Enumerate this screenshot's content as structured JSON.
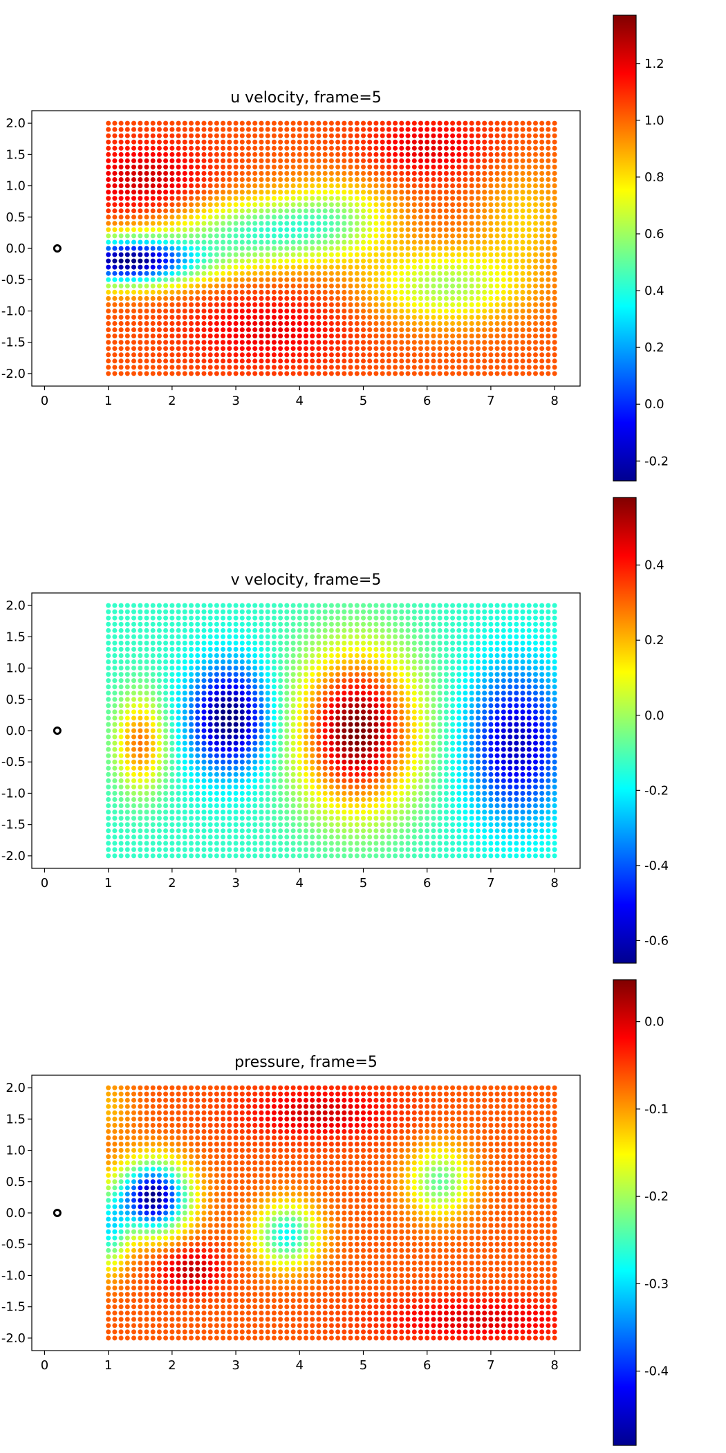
{
  "chart_data": [
    {
      "type": "scatter",
      "title": "u velocity, frame=5",
      "field": "u",
      "xlim": [
        -0.2,
        8.4
      ],
      "ylim": [
        -2.2,
        2.2
      ],
      "xticks": [
        "0",
        "1",
        "2",
        "3",
        "4",
        "5",
        "6",
        "7",
        "8"
      ],
      "yticks": [
        "2.0",
        "1.5",
        "1.0",
        "0.5",
        "0.0",
        "-0.5",
        "-1.0",
        "-1.5",
        "-2.0"
      ],
      "grid": false,
      "colormap": "jet",
      "colorbar": {
        "min": -0.27,
        "max": 1.37,
        "ticks": [
          "1.2",
          "1.0",
          "0.8",
          "0.6",
          "0.4",
          "0.2",
          "0.0",
          "-0.2"
        ]
      },
      "points": {
        "x_range": [
          1,
          8
        ],
        "y_range": [
          -2,
          2
        ],
        "nx": 71,
        "ny": 41
      },
      "cylinder": {
        "x": 0.2,
        "y": 0.0
      }
    },
    {
      "type": "scatter",
      "title": "v velocity, frame=5",
      "field": "v",
      "xlim": [
        -0.2,
        8.4
      ],
      "ylim": [
        -2.2,
        2.2
      ],
      "xticks": [
        "0",
        "1",
        "2",
        "3",
        "4",
        "5",
        "6",
        "7",
        "8"
      ],
      "yticks": [
        "2.0",
        "1.5",
        "1.0",
        "0.5",
        "0.0",
        "-0.5",
        "-1.0",
        "-1.5",
        "-2.0"
      ],
      "grid": false,
      "colormap": "jet",
      "colorbar": {
        "min": -0.66,
        "max": 0.58,
        "ticks": [
          "0.4",
          "0.2",
          "0.0",
          "-0.2",
          "-0.4",
          "-0.6"
        ]
      },
      "points": {
        "x_range": [
          1,
          8
        ],
        "y_range": [
          -2,
          2
        ],
        "nx": 71,
        "ny": 41
      },
      "cylinder": {
        "x": 0.2,
        "y": 0.0
      }
    },
    {
      "type": "scatter",
      "title": "pressure, frame=5",
      "field": "p",
      "xlim": [
        -0.2,
        8.4
      ],
      "ylim": [
        -2.2,
        2.2
      ],
      "xticks": [
        "0",
        "1",
        "2",
        "3",
        "4",
        "5",
        "6",
        "7",
        "8"
      ],
      "yticks": [
        "2.0",
        "1.5",
        "1.0",
        "0.5",
        "0.0",
        "-0.5",
        "-1.0",
        "-1.5",
        "-2.0"
      ],
      "grid": false,
      "colormap": "jet",
      "colorbar": {
        "min": -0.485,
        "max": 0.048,
        "ticks": [
          "0.0",
          "-0.1",
          "-0.2",
          "-0.3",
          "-0.4"
        ]
      },
      "points": {
        "x_range": [
          1,
          8
        ],
        "y_range": [
          -2,
          2
        ],
        "nx": 71,
        "ny": 41
      },
      "cylinder": {
        "x": 0.2,
        "y": 0.0
      }
    }
  ]
}
